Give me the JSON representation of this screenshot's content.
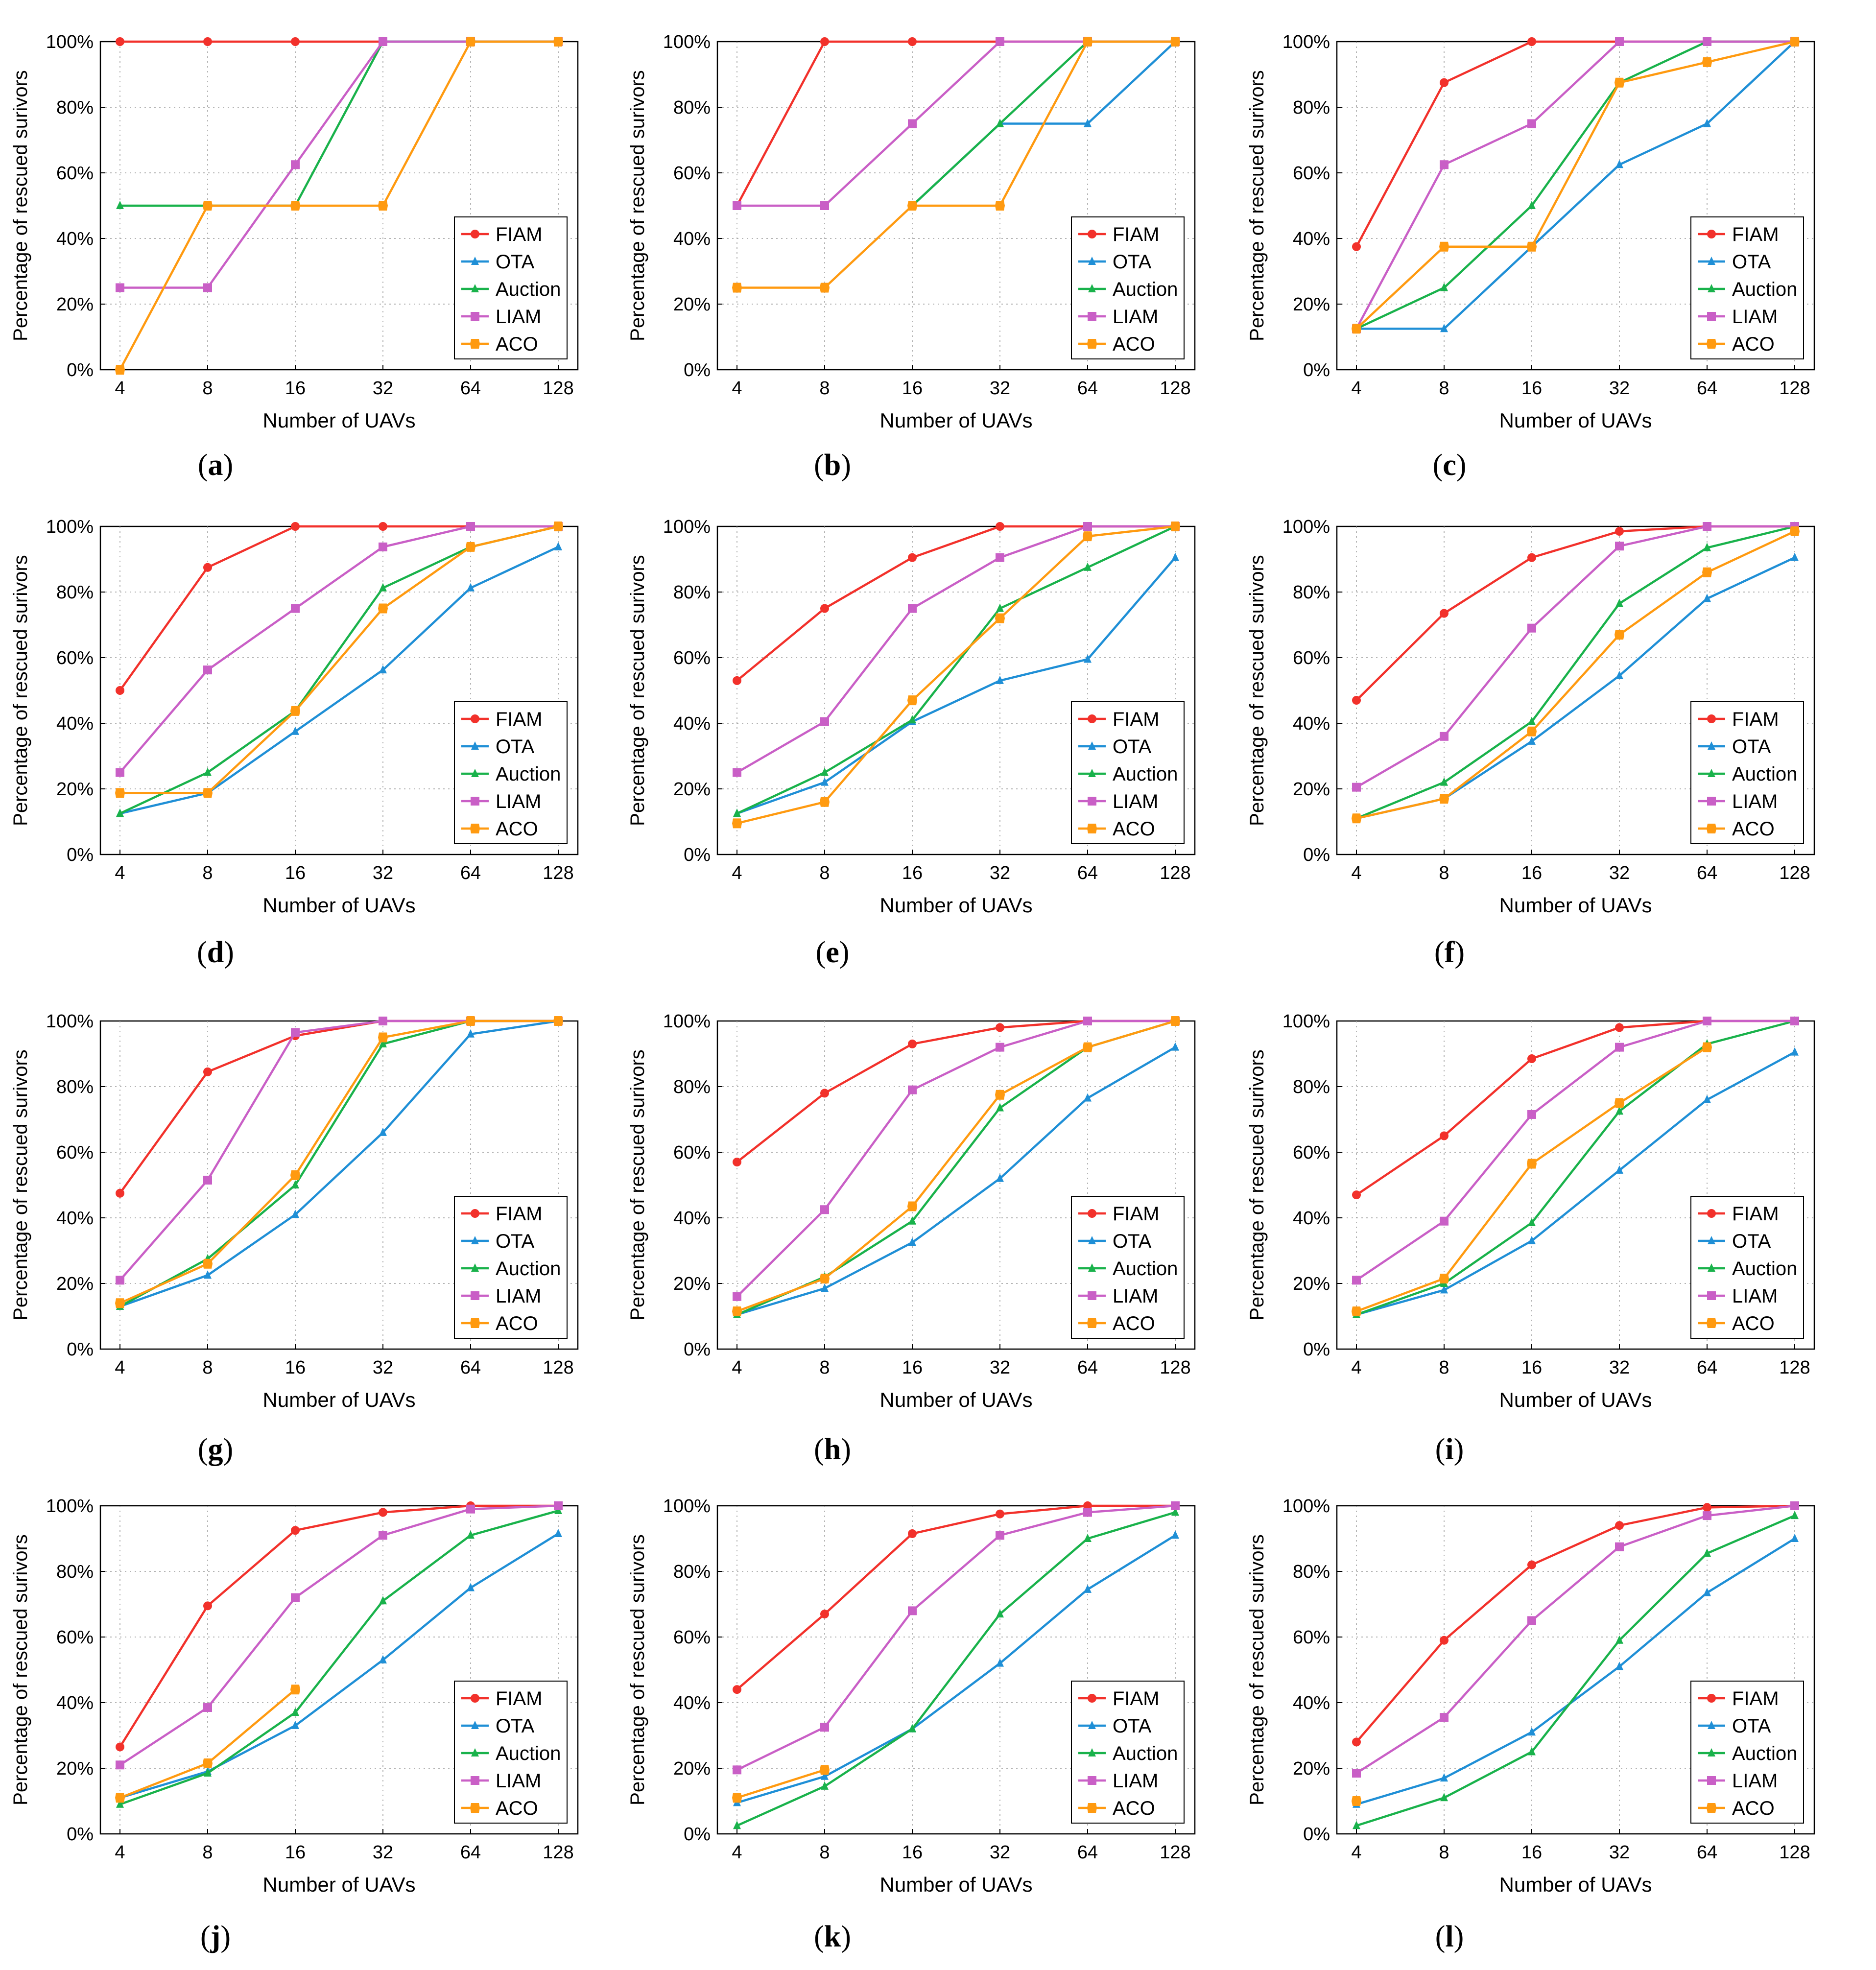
{
  "figure": {
    "y_axis_label": "Percentage of rescued surivors",
    "x_axis_label": "Number of UAVs"
  },
  "colors": {
    "FIAM": "#f2312b",
    "OTA": "#1f8fd6",
    "Auction": "#19b24b",
    "LIAM": "#c95fc6",
    "ACO": "#ff9a10"
  },
  "chart_data": [
    {
      "type": "line",
      "panel": "a",
      "title": "",
      "xlabel": "Number of UAVs",
      "ylabel": "Percentage of rescued surivors",
      "categories": [
        "4",
        "8",
        "16",
        "32",
        "64",
        "128"
      ],
      "yticks": [
        "0%",
        "20%",
        "40%",
        "60%",
        "80%",
        "100%"
      ],
      "ylim": [
        0,
        100
      ],
      "legend": "lower-right",
      "grid": true,
      "series": [
        {
          "name": "FIAM",
          "values": [
            100,
            100,
            100,
            100,
            100,
            100
          ]
        },
        {
          "name": "OTA",
          "values": [
            null,
            null,
            null,
            100,
            100,
            100
          ]
        },
        {
          "name": "Auction",
          "values": [
            50,
            50,
            50,
            100,
            100,
            100
          ]
        },
        {
          "name": "LIAM",
          "values": [
            25,
            25,
            62.5,
            100,
            100,
            100
          ]
        },
        {
          "name": "ACO",
          "values": [
            0,
            50,
            50,
            50,
            100,
            100
          ]
        }
      ]
    },
    {
      "type": "line",
      "panel": "b",
      "title": "",
      "xlabel": "Number of UAVs",
      "ylabel": "Percentage of rescued surivors",
      "categories": [
        "4",
        "8",
        "16",
        "32",
        "64",
        "128"
      ],
      "yticks": [
        "0%",
        "20%",
        "40%",
        "60%",
        "80%",
        "100%"
      ],
      "ylim": [
        0,
        100
      ],
      "legend": "lower-right",
      "grid": true,
      "series": [
        {
          "name": "FIAM",
          "values": [
            50,
            100,
            100,
            100,
            100,
            100
          ]
        },
        {
          "name": "OTA",
          "values": [
            null,
            null,
            50,
            75,
            75,
            100
          ]
        },
        {
          "name": "Auction",
          "values": [
            null,
            null,
            50,
            75,
            100,
            100
          ]
        },
        {
          "name": "LIAM",
          "values": [
            50,
            50,
            75,
            100,
            100,
            100
          ]
        },
        {
          "name": "ACO",
          "values": [
            25,
            25,
            50,
            50,
            100,
            100
          ]
        }
      ]
    },
    {
      "type": "line",
      "panel": "c",
      "title": "",
      "xlabel": "Number of UAVs",
      "ylabel": "Percentage of rescued surivors",
      "categories": [
        "4",
        "8",
        "16",
        "32",
        "64",
        "128"
      ],
      "yticks": [
        "0%",
        "20%",
        "40%",
        "60%",
        "80%",
        "100%"
      ],
      "ylim": [
        0,
        100
      ],
      "legend": "lower-right",
      "grid": true,
      "series": [
        {
          "name": "FIAM",
          "values": [
            37.5,
            87.5,
            100,
            100,
            100,
            100
          ]
        },
        {
          "name": "OTA",
          "values": [
            12.5,
            12.5,
            37.5,
            62.5,
            75,
            100
          ]
        },
        {
          "name": "Auction",
          "values": [
            12.5,
            25,
            50,
            87.5,
            100,
            100
          ]
        },
        {
          "name": "LIAM",
          "values": [
            12.5,
            62.5,
            75,
            100,
            100,
            100
          ]
        },
        {
          "name": "ACO",
          "values": [
            12.5,
            37.5,
            37.5,
            87.5,
            93.75,
            100
          ]
        }
      ]
    },
    {
      "type": "line",
      "panel": "d",
      "title": "",
      "xlabel": "Number of UAVs",
      "ylabel": "Percentage of rescued surivors",
      "categories": [
        "4",
        "8",
        "16",
        "32",
        "64",
        "128"
      ],
      "yticks": [
        "0%",
        "20%",
        "40%",
        "60%",
        "80%",
        "100%"
      ],
      "ylim": [
        0,
        100
      ],
      "legend": "lower-right",
      "grid": true,
      "series": [
        {
          "name": "FIAM",
          "values": [
            50,
            87.5,
            100,
            100,
            100,
            100
          ]
        },
        {
          "name": "OTA",
          "values": [
            12.5,
            18.75,
            37.5,
            56.25,
            81.25,
            93.75
          ]
        },
        {
          "name": "Auction",
          "values": [
            12.5,
            25,
            43.75,
            81.25,
            93.75,
            100
          ]
        },
        {
          "name": "LIAM",
          "values": [
            25,
            56.25,
            75,
            93.75,
            100,
            100
          ]
        },
        {
          "name": "ACO",
          "values": [
            18.75,
            18.75,
            43.75,
            75,
            93.75,
            100
          ]
        }
      ]
    },
    {
      "type": "line",
      "panel": "e",
      "title": "",
      "xlabel": "Number of UAVs",
      "ylabel": "Percentage of rescued surivors",
      "categories": [
        "4",
        "8",
        "16",
        "32",
        "64",
        "128"
      ],
      "yticks": [
        "0%",
        "20%",
        "40%",
        "60%",
        "80%",
        "100%"
      ],
      "ylim": [
        0,
        100
      ],
      "legend": "lower-right",
      "grid": true,
      "series": [
        {
          "name": "FIAM",
          "values": [
            53,
            75,
            90.5,
            100,
            100,
            100
          ]
        },
        {
          "name": "OTA",
          "values": [
            12.5,
            22,
            40.5,
            53,
            59.5,
            90.5
          ]
        },
        {
          "name": "Auction",
          "values": [
            12.5,
            25,
            41,
            75,
            87.5,
            100
          ]
        },
        {
          "name": "LIAM",
          "values": [
            25,
            40.5,
            75,
            90.5,
            100,
            100
          ]
        },
        {
          "name": "ACO",
          "values": [
            9.5,
            16,
            47,
            72,
            97,
            100
          ]
        }
      ]
    },
    {
      "type": "line",
      "panel": "f",
      "title": "",
      "xlabel": "Number of UAVs",
      "ylabel": "Percentage of rescued surivors",
      "categories": [
        "4",
        "8",
        "16",
        "32",
        "64",
        "128"
      ],
      "yticks": [
        "0%",
        "20%",
        "40%",
        "60%",
        "80%",
        "100%"
      ],
      "ylim": [
        0,
        100
      ],
      "legend": "lower-right",
      "grid": true,
      "series": [
        {
          "name": "FIAM",
          "values": [
            47,
            73.5,
            90.5,
            98.5,
            100,
            100
          ]
        },
        {
          "name": "OTA",
          "values": [
            11,
            17,
            34.5,
            54.5,
            78,
            90.5
          ]
        },
        {
          "name": "Auction",
          "values": [
            11,
            22,
            40.5,
            76.5,
            93.5,
            100
          ]
        },
        {
          "name": "LIAM",
          "values": [
            20.5,
            36,
            69,
            94,
            100,
            100
          ]
        },
        {
          "name": "ACO",
          "values": [
            11,
            17,
            37.5,
            67,
            86,
            98.5
          ]
        }
      ]
    },
    {
      "type": "line",
      "panel": "g",
      "title": "",
      "xlabel": "Number of UAVs",
      "ylabel": "Percentage of rescued surivors",
      "categories": [
        "4",
        "8",
        "16",
        "32",
        "64",
        "128"
      ],
      "yticks": [
        "0%",
        "20%",
        "40%",
        "60%",
        "80%",
        "100%"
      ],
      "ylim": [
        0,
        100
      ],
      "legend": "lower-right",
      "grid": true,
      "series": [
        {
          "name": "FIAM",
          "values": [
            47.5,
            84.5,
            95.5,
            100,
            100,
            100
          ]
        },
        {
          "name": "OTA",
          "values": [
            13,
            22.5,
            41,
            66,
            96,
            100
          ]
        },
        {
          "name": "Auction",
          "values": [
            13,
            27.5,
            50,
            93,
            100,
            100
          ]
        },
        {
          "name": "LIAM",
          "values": [
            21,
            51.5,
            96.5,
            100,
            100,
            100
          ]
        },
        {
          "name": "ACO",
          "values": [
            14,
            26,
            53,
            95,
            100,
            100
          ]
        }
      ]
    },
    {
      "type": "line",
      "panel": "h",
      "title": "",
      "xlabel": "Number of UAVs",
      "ylabel": "Percentage of rescued surivors",
      "categories": [
        "4",
        "8",
        "16",
        "32",
        "64",
        "128"
      ],
      "yticks": [
        "0%",
        "20%",
        "40%",
        "60%",
        "80%",
        "100%"
      ],
      "ylim": [
        0,
        100
      ],
      "legend": "lower-right",
      "grid": true,
      "series": [
        {
          "name": "FIAM",
          "values": [
            57,
            78,
            93,
            98,
            100,
            100
          ]
        },
        {
          "name": "OTA",
          "values": [
            10.5,
            18.5,
            32.5,
            52,
            76.5,
            92
          ]
        },
        {
          "name": "Auction",
          "values": [
            10.5,
            22,
            39,
            73.5,
            92,
            100
          ]
        },
        {
          "name": "LIAM",
          "values": [
            16,
            42.5,
            79,
            92,
            100,
            100
          ]
        },
        {
          "name": "ACO",
          "values": [
            11.5,
            21.5,
            43.5,
            77.5,
            92,
            100
          ]
        }
      ]
    },
    {
      "type": "line",
      "panel": "i",
      "title": "",
      "xlabel": "Number of UAVs",
      "ylabel": "Percentage of rescued surivors",
      "categories": [
        "4",
        "8",
        "16",
        "32",
        "64",
        "128"
      ],
      "yticks": [
        "0%",
        "20%",
        "40%",
        "60%",
        "80%",
        "100%"
      ],
      "ylim": [
        0,
        100
      ],
      "legend": "lower-right",
      "grid": true,
      "series": [
        {
          "name": "FIAM",
          "values": [
            47,
            65,
            88.5,
            98,
            100,
            100
          ]
        },
        {
          "name": "OTA",
          "values": [
            10.5,
            18,
            33,
            54.5,
            76,
            90.5
          ]
        },
        {
          "name": "Auction",
          "values": [
            10.5,
            20,
            38.5,
            72.5,
            93,
            100
          ]
        },
        {
          "name": "LIAM",
          "values": [
            21,
            39,
            71.5,
            92,
            100,
            100
          ]
        },
        {
          "name": "ACO",
          "values": [
            11.5,
            21.5,
            56.5,
            75,
            92,
            null
          ]
        }
      ]
    },
    {
      "type": "line",
      "panel": "j",
      "title": "",
      "xlabel": "Number of UAVs",
      "ylabel": "Percentage of rescued surivors",
      "categories": [
        "4",
        "8",
        "16",
        "32",
        "64",
        "128"
      ],
      "yticks": [
        "0%",
        "20%",
        "40%",
        "60%",
        "80%",
        "100%"
      ],
      "ylim": [
        0,
        100
      ],
      "legend": "lower-right",
      "grid": true,
      "series": [
        {
          "name": "FIAM",
          "values": [
            26.5,
            69.5,
            92.5,
            98,
            100,
            100
          ]
        },
        {
          "name": "OTA",
          "values": [
            11,
            19,
            33,
            53,
            75,
            91.5
          ]
        },
        {
          "name": "Auction",
          "values": [
            9,
            18.5,
            37,
            71,
            91,
            98.5
          ]
        },
        {
          "name": "LIAM",
          "values": [
            21,
            38.5,
            72,
            91,
            99,
            100
          ]
        },
        {
          "name": "ACO",
          "values": [
            11,
            21.5,
            44,
            null,
            null,
            null
          ]
        }
      ]
    },
    {
      "type": "line",
      "panel": "k",
      "title": "",
      "xlabel": "Number of UAVs",
      "ylabel": "Percentage of rescued surivors",
      "categories": [
        "4",
        "8",
        "16",
        "32",
        "64",
        "128"
      ],
      "yticks": [
        "0%",
        "20%",
        "40%",
        "60%",
        "80%",
        "100%"
      ],
      "ylim": [
        0,
        100
      ],
      "legend": "lower-right",
      "grid": true,
      "series": [
        {
          "name": "FIAM",
          "values": [
            44,
            67,
            91.5,
            97.5,
            100,
            100
          ]
        },
        {
          "name": "OTA",
          "values": [
            9.5,
            17.5,
            32,
            52,
            74.5,
            91
          ]
        },
        {
          "name": "Auction",
          "values": [
            2.5,
            14.5,
            32,
            67,
            90,
            98
          ]
        },
        {
          "name": "LIAM",
          "values": [
            19.5,
            32.5,
            68,
            91,
            98,
            100
          ]
        },
        {
          "name": "ACO",
          "values": [
            11,
            19.5,
            null,
            null,
            null,
            null
          ]
        }
      ]
    },
    {
      "type": "line",
      "panel": "l",
      "title": "",
      "xlabel": "Number of UAVs",
      "ylabel": "Percentage of rescued surivors",
      "categories": [
        "4",
        "8",
        "16",
        "32",
        "64",
        "128"
      ],
      "yticks": [
        "0%",
        "20%",
        "40%",
        "60%",
        "80%",
        "100%"
      ],
      "ylim": [
        0,
        100
      ],
      "legend": "lower-right",
      "grid": true,
      "series": [
        {
          "name": "FIAM",
          "values": [
            28,
            59,
            82,
            94,
            99.5,
            100
          ]
        },
        {
          "name": "OTA",
          "values": [
            9,
            17,
            31,
            51,
            73.5,
            90
          ]
        },
        {
          "name": "Auction",
          "values": [
            2.5,
            11,
            25,
            59,
            85.5,
            97
          ]
        },
        {
          "name": "LIAM",
          "values": [
            18.5,
            35.5,
            65,
            87.5,
            97,
            100
          ]
        },
        {
          "name": "ACO",
          "values": [
            10,
            null,
            null,
            null,
            null,
            null
          ]
        }
      ]
    }
  ]
}
